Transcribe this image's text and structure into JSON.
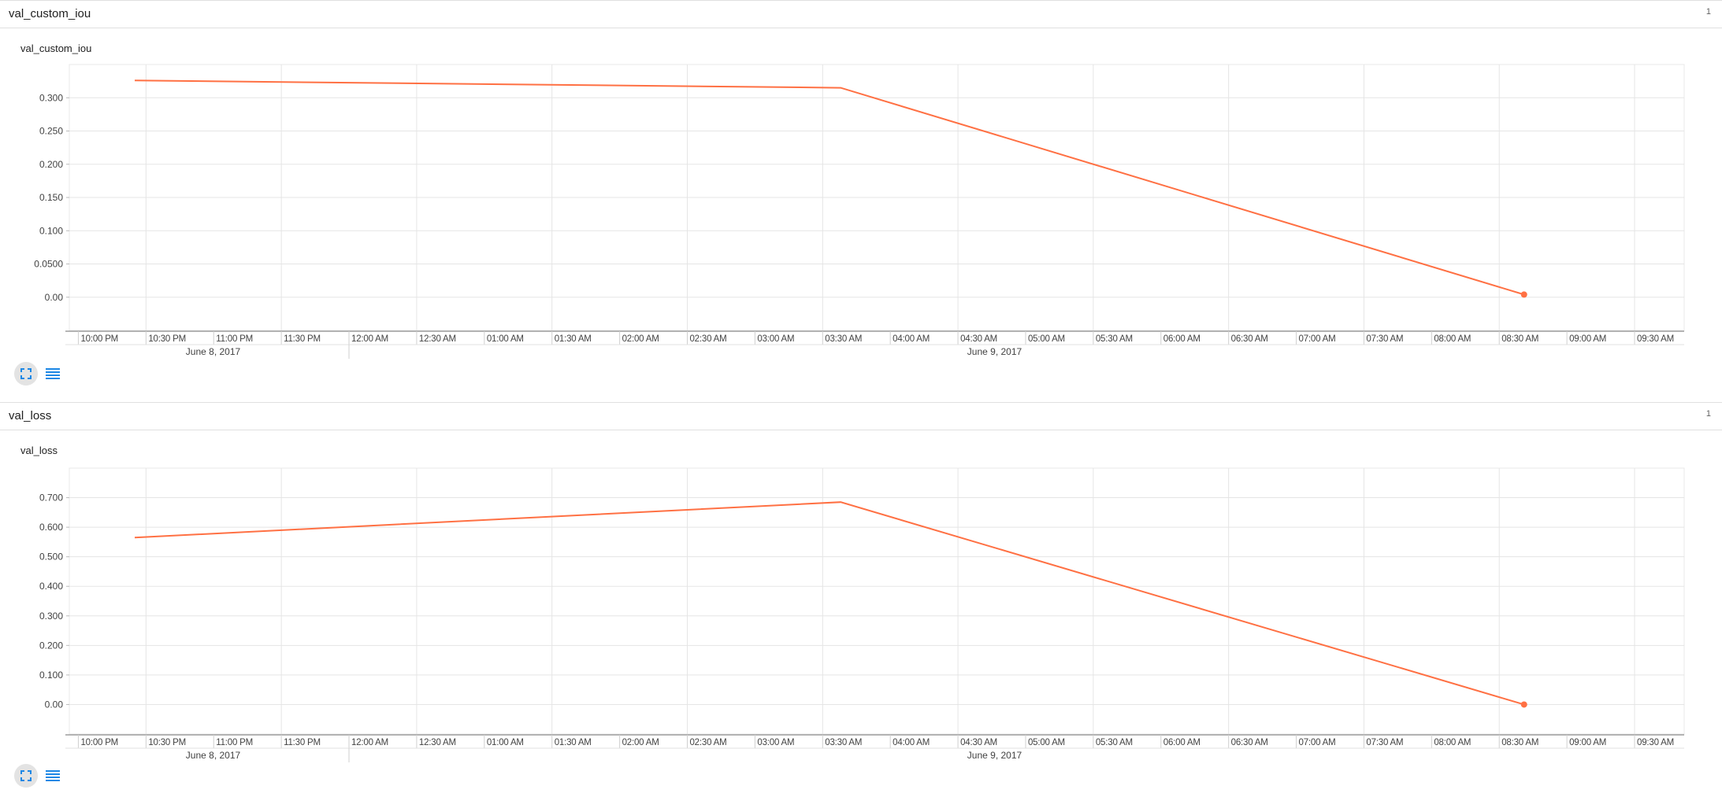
{
  "panels": [
    {
      "section_title": "val_custom_iou",
      "count": "1",
      "card_title": "val_custom_iou",
      "chart_data": {
        "type": "line",
        "title": "val_custom_iou",
        "x_axis": "time",
        "x_tick_labels": [
          "10:00 PM",
          "10:30 PM",
          "11:00 PM",
          "11:30 PM",
          "12:00 AM",
          "12:30 AM",
          "01:00 AM",
          "01:30 AM",
          "02:00 AM",
          "02:30 AM",
          "03:00 AM",
          "03:30 AM",
          "04:00 AM",
          "04:30 AM",
          "05:00 AM",
          "05:30 AM",
          "06:00 AM",
          "06:30 AM",
          "07:00 AM",
          "07:30 AM",
          "08:00 AM",
          "08:30 AM",
          "09:00 AM",
          "09:30 AM"
        ],
        "date_labels": [
          "June 8, 2017",
          "June 9, 2017"
        ],
        "y_tick_labels": [
          "0.00",
          "0.0500",
          "0.100",
          "0.150",
          "0.200",
          "0.250",
          "0.300"
        ],
        "ylim": [
          -0.05,
          0.35
        ],
        "x_range": [
          "2017-06-08 21:56",
          "2017-06-09 09:52"
        ],
        "grid": true,
        "series": [
          {
            "color": "#ff7043",
            "points": [
              {
                "x": "2017-06-08 22:25",
                "y": 0.326
              },
              {
                "x": "2017-06-09 03:38",
                "y": 0.315
              },
              {
                "x": "2017-06-09 08:41",
                "y": 0.004
              }
            ]
          }
        ]
      }
    },
    {
      "section_title": "val_loss",
      "count": "1",
      "card_title": "val_loss",
      "chart_data": {
        "type": "line",
        "title": "val_loss",
        "x_axis": "time",
        "x_tick_labels": [
          "10:00 PM",
          "10:30 PM",
          "11:00 PM",
          "11:30 PM",
          "12:00 AM",
          "12:30 AM",
          "01:00 AM",
          "01:30 AM",
          "02:00 AM",
          "02:30 AM",
          "03:00 AM",
          "03:30 AM",
          "04:00 AM",
          "04:30 AM",
          "05:00 AM",
          "05:30 AM",
          "06:00 AM",
          "06:30 AM",
          "07:00 AM",
          "07:30 AM",
          "08:00 AM",
          "08:30 AM",
          "09:00 AM",
          "09:30 AM"
        ],
        "date_labels": [
          "June 8, 2017",
          "June 9, 2017"
        ],
        "y_tick_labels": [
          "0.00",
          "0.100",
          "0.200",
          "0.300",
          "0.400",
          "0.500",
          "0.600",
          "0.700"
        ],
        "ylim": [
          -0.1,
          0.8
        ],
        "x_range": [
          "2017-06-08 21:56",
          "2017-06-09 09:52"
        ],
        "grid": true,
        "series": [
          {
            "color": "#ff7043",
            "points": [
              {
                "x": "2017-06-08 22:25",
                "y": 0.565
              },
              {
                "x": "2017-06-09 03:38",
                "y": 0.685
              },
              {
                "x": "2017-06-09 08:41",
                "y": 0.0
              }
            ]
          }
        ]
      }
    }
  ],
  "icons": {
    "expand": "fullscreen-icon",
    "data": "list-icon",
    "accent": "#1e88e5"
  }
}
